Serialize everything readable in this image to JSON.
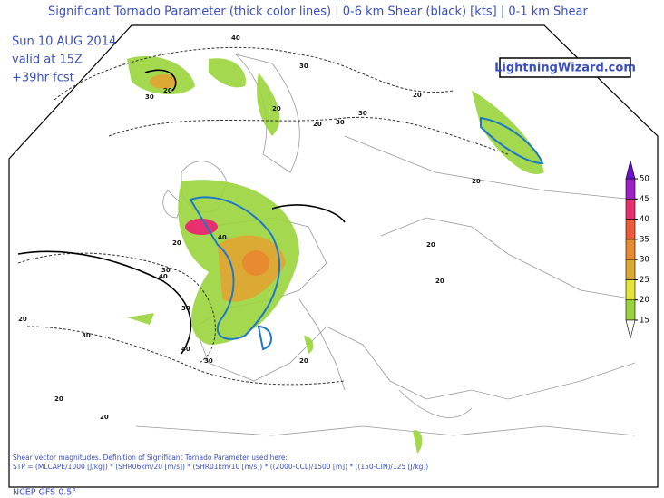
{
  "header": {
    "title": "Significant Tornado Parameter (thick color lines) | 0-6 km Shear (black) [kts] | 0-1 km Shear",
    "date": "Sun 10 AUG 2014",
    "valid": "valid at 15Z",
    "forecast": "+39hr fcst",
    "brand": "LightningWizard.com"
  },
  "map": {
    "contour_labels": [
      40,
      20,
      30,
      30,
      20,
      30,
      20,
      40,
      20,
      30,
      40,
      20,
      30,
      20,
      30,
      40,
      20,
      20,
      20,
      20,
      20,
      30,
      20,
      30
    ]
  },
  "colorbar": {
    "ticks": [
      15,
      20,
      25,
      30,
      35,
      40,
      45,
      50
    ],
    "colors": [
      "#9ad43c",
      "#e4e43a",
      "#dcaa34",
      "#e88a30",
      "#ee5a3a",
      "#e83070",
      "#a020c8",
      "#7010d0"
    ]
  },
  "footer": {
    "note": "Shear vector magnitudes. Definition of Significant Tornado Parameter used here:",
    "formula": "STP = (MLCAPE/1000 [J/kg]) * (SHR06km/20 [m/s]) * (SHR01km/10 [m/s]) * ((2000-CCL)/1500 [m]) * ((150-CIN)/125 [J/kg])",
    "model": "NCEP GFS 0.5°"
  }
}
